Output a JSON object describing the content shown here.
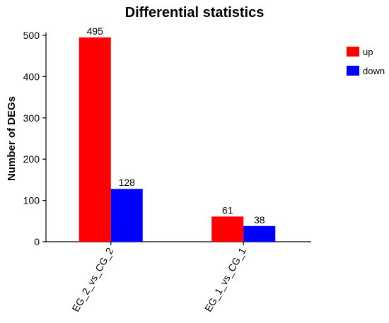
{
  "chart_data": {
    "type": "bar",
    "title": "Differential statistics",
    "xlabel": "",
    "ylabel": "Number of DEGs",
    "categories": [
      "EG_2_vs_CG_2",
      "EG_1_vs_CG_1"
    ],
    "series": [
      {
        "name": "up",
        "values": [
          495,
          61
        ],
        "color": "#ff0000"
      },
      {
        "name": "down",
        "values": [
          128,
          38
        ],
        "color": "#0000ff"
      }
    ],
    "ylim": [
      0,
      500
    ],
    "yticks": [
      0,
      100,
      200,
      300,
      400,
      500
    ],
    "grid": false,
    "legend_position": "top-right"
  }
}
